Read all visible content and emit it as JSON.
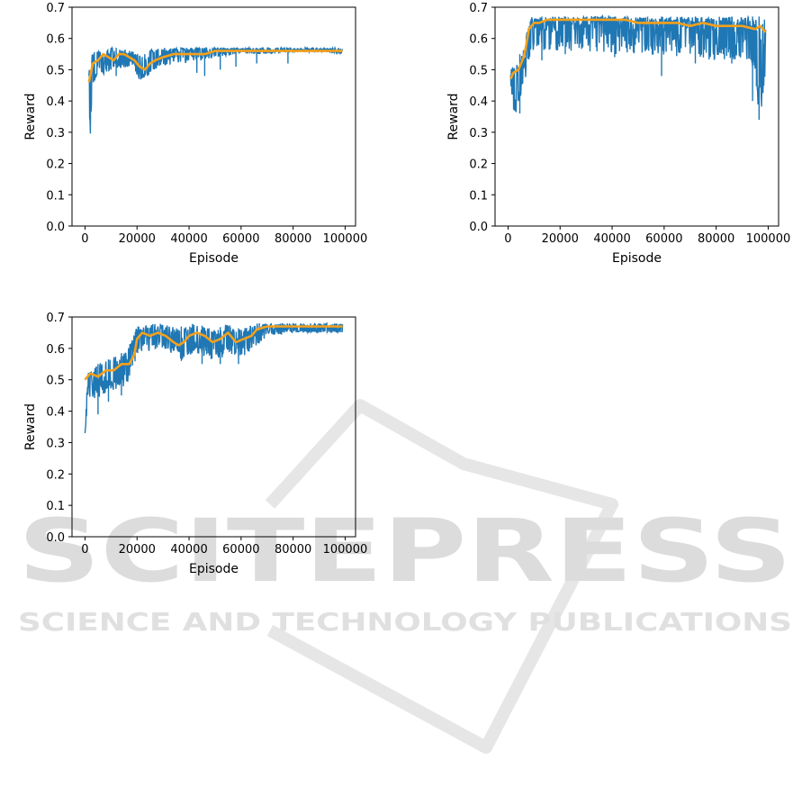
{
  "watermark": {
    "text": "SCITEPRESS",
    "subtext": "SCIENCE AND TECHNOLOGY PUBLICATIONS",
    "color": "#d9d9d9"
  },
  "colors": {
    "raw": "#1f77b4",
    "smooth": "#f5a01a",
    "axis": "#000000"
  },
  "chart_data": [
    {
      "type": "line",
      "xlabel": "Episode",
      "ylabel": "Reward",
      "xlim": [
        -5000,
        104000
      ],
      "ylim": [
        0.0,
        0.7
      ],
      "xticks": [
        0,
        20000,
        40000,
        60000,
        80000,
        100000
      ],
      "xtick_labels": [
        "0",
        "20000",
        "40000",
        "60000",
        "80000",
        "100000"
      ],
      "yticks": [
        0.0,
        0.1,
        0.2,
        0.3,
        0.4,
        0.5,
        0.6,
        0.7
      ],
      "ytick_labels": [
        "0.0",
        "0.1",
        "0.2",
        "0.3",
        "0.4",
        "0.5",
        "0.6",
        "0.7"
      ],
      "series": [
        {
          "role": "raw",
          "color": "#1f77b4",
          "x": [
            1500,
            2000,
            3000,
            4000,
            5000,
            7000,
            10000,
            14000,
            18000,
            21000,
            24000,
            27000,
            30000,
            35000,
            40000,
            50000,
            60000,
            70000,
            80000,
            90000,
            99000
          ],
          "y": [
            0.46,
            0.32,
            0.53,
            0.48,
            0.54,
            0.5,
            0.55,
            0.52,
            0.53,
            0.48,
            0.5,
            0.53,
            0.54,
            0.55,
            0.55,
            0.56,
            0.56,
            0.56,
            0.56,
            0.56,
            0.56
          ],
          "band_upper": [
            0.5,
            0.55,
            0.56,
            0.56,
            0.56,
            0.56,
            0.57,
            0.57,
            0.56,
            0.55,
            0.56,
            0.57,
            0.57,
            0.57,
            0.57,
            0.57,
            0.57,
            0.57,
            0.57,
            0.57,
            0.57
          ],
          "band_lower": [
            0.42,
            0.32,
            0.45,
            0.47,
            0.48,
            0.49,
            0.5,
            0.51,
            0.51,
            0.47,
            0.48,
            0.5,
            0.51,
            0.52,
            0.52,
            0.54,
            0.55,
            0.55,
            0.56,
            0.56,
            0.55
          ],
          "dips": [
            [
              10000,
              0.5
            ],
            [
              12000,
              0.48
            ],
            [
              43000,
              0.49
            ],
            [
              46000,
              0.48
            ],
            [
              52000,
              0.5
            ],
            [
              58000,
              0.51
            ],
            [
              66000,
              0.52
            ],
            [
              78000,
              0.52
            ]
          ]
        },
        {
          "role": "smoothed",
          "color": "#f5a01a",
          "x": [
            1500,
            3000,
            5000,
            7000,
            9000,
            11000,
            13000,
            15000,
            17000,
            19000,
            21000,
            23000,
            25000,
            27000,
            30000,
            34000,
            38000,
            42000,
            46000,
            50000,
            55000,
            60000,
            70000,
            80000,
            90000,
            99000
          ],
          "y": [
            0.46,
            0.52,
            0.53,
            0.55,
            0.54,
            0.53,
            0.55,
            0.55,
            0.54,
            0.53,
            0.51,
            0.5,
            0.52,
            0.53,
            0.54,
            0.55,
            0.55,
            0.55,
            0.55,
            0.56,
            0.56,
            0.56,
            0.56,
            0.56,
            0.56,
            0.56
          ]
        }
      ]
    },
    {
      "type": "line",
      "xlabel": "Episode",
      "ylabel": "Reward",
      "xlim": [
        -5000,
        104000
      ],
      "ylim": [
        0.0,
        0.7
      ],
      "xticks": [
        0,
        20000,
        40000,
        60000,
        80000,
        100000
      ],
      "xtick_labels": [
        "0",
        "20000",
        "40000",
        "60000",
        "80000",
        "100000"
      ],
      "yticks": [
        0.0,
        0.1,
        0.2,
        0.3,
        0.4,
        0.5,
        0.6,
        0.7
      ],
      "ytick_labels": [
        "0.0",
        "0.1",
        "0.2",
        "0.3",
        "0.4",
        "0.5",
        "0.6",
        "0.7"
      ],
      "series": [
        {
          "role": "raw",
          "color": "#1f77b4",
          "x": [
            1000,
            2000,
            3000,
            4000,
            5000,
            6000,
            7000,
            8000,
            9000,
            10000,
            15000,
            20000,
            30000,
            40000,
            50000,
            60000,
            70000,
            80000,
            90000,
            95000,
            97000,
            99000
          ],
          "y": [
            0.47,
            0.4,
            0.38,
            0.48,
            0.46,
            0.52,
            0.55,
            0.6,
            0.62,
            0.64,
            0.63,
            0.64,
            0.64,
            0.64,
            0.63,
            0.63,
            0.63,
            0.62,
            0.61,
            0.55,
            0.35,
            0.52
          ],
          "band_upper": [
            0.49,
            0.54,
            0.53,
            0.55,
            0.55,
            0.58,
            0.62,
            0.66,
            0.67,
            0.67,
            0.67,
            0.67,
            0.67,
            0.67,
            0.67,
            0.67,
            0.67,
            0.67,
            0.67,
            0.67,
            0.67,
            0.67
          ],
          "band_lower": [
            0.46,
            0.38,
            0.36,
            0.4,
            0.42,
            0.45,
            0.48,
            0.52,
            0.55,
            0.56,
            0.56,
            0.56,
            0.56,
            0.55,
            0.55,
            0.54,
            0.54,
            0.53,
            0.53,
            0.5,
            0.34,
            0.5
          ],
          "dips": [
            [
              4500,
              0.36
            ],
            [
              13000,
              0.53
            ],
            [
              22000,
              0.55
            ],
            [
              41000,
              0.54
            ],
            [
              59000,
              0.48
            ],
            [
              72000,
              0.52
            ],
            [
              86000,
              0.52
            ],
            [
              94000,
              0.4
            ],
            [
              96500,
              0.34
            ]
          ]
        },
        {
          "role": "smoothed",
          "color": "#f5a01a",
          "x": [
            1000,
            2000,
            4000,
            6000,
            7000,
            8000,
            9000,
            10000,
            12000,
            15000,
            20000,
            25000,
            30000,
            35000,
            40000,
            45000,
            50000,
            55000,
            60000,
            65000,
            70000,
            75000,
            80000,
            85000,
            90000,
            95000,
            97000,
            99000
          ],
          "y": [
            0.47,
            0.49,
            0.5,
            0.54,
            0.58,
            0.63,
            0.64,
            0.65,
            0.65,
            0.66,
            0.66,
            0.66,
            0.66,
            0.66,
            0.66,
            0.66,
            0.65,
            0.65,
            0.65,
            0.65,
            0.64,
            0.65,
            0.64,
            0.64,
            0.64,
            0.63,
            0.64,
            0.62
          ]
        }
      ]
    },
    {
      "type": "line",
      "xlabel": "Episode",
      "ylabel": "Reward",
      "xlim": [
        -5000,
        104000
      ],
      "ylim": [
        0.0,
        0.7
      ],
      "xticks": [
        0,
        20000,
        40000,
        60000,
        80000,
        100000
      ],
      "xtick_labels": [
        "0",
        "20000",
        "40000",
        "60000",
        "80000",
        "100000"
      ],
      "yticks": [
        0.0,
        0.1,
        0.2,
        0.3,
        0.4,
        0.5,
        0.6,
        0.7
      ],
      "ytick_labels": [
        "0.0",
        "0.1",
        "0.2",
        "0.3",
        "0.4",
        "0.5",
        "0.6",
        "0.7"
      ],
      "series": [
        {
          "role": "raw",
          "color": "#1f77b4",
          "x": [
            0,
            1000,
            3000,
            5000,
            8000,
            12000,
            16000,
            18000,
            20000,
            25000,
            30000,
            34000,
            38000,
            42000,
            46000,
            50000,
            55000,
            60000,
            65000,
            70000,
            80000,
            90000,
            99000
          ],
          "y": [
            0.33,
            0.5,
            0.48,
            0.49,
            0.5,
            0.52,
            0.53,
            0.58,
            0.63,
            0.64,
            0.63,
            0.62,
            0.61,
            0.63,
            0.62,
            0.6,
            0.63,
            0.61,
            0.64,
            0.66,
            0.66,
            0.66,
            0.66
          ],
          "band_upper": [
            0.33,
            0.52,
            0.54,
            0.55,
            0.56,
            0.58,
            0.59,
            0.63,
            0.67,
            0.68,
            0.68,
            0.67,
            0.67,
            0.68,
            0.67,
            0.66,
            0.68,
            0.66,
            0.68,
            0.68,
            0.68,
            0.68,
            0.68
          ],
          "band_lower": [
            0.33,
            0.42,
            0.44,
            0.43,
            0.46,
            0.47,
            0.48,
            0.52,
            0.58,
            0.59,
            0.6,
            0.58,
            0.56,
            0.59,
            0.57,
            0.56,
            0.58,
            0.56,
            0.6,
            0.64,
            0.65,
            0.65,
            0.65
          ],
          "dips": [
            [
              5000,
              0.39
            ],
            [
              9000,
              0.43
            ],
            [
              14000,
              0.45
            ],
            [
              37000,
              0.56
            ],
            [
              45000,
              0.55
            ],
            [
              52000,
              0.55
            ],
            [
              59000,
              0.55
            ],
            [
              67000,
              0.62
            ]
          ]
        },
        {
          "role": "smoothed",
          "color": "#f5a01a",
          "x": [
            0,
            2000,
            5000,
            8000,
            11000,
            14000,
            17000,
            19000,
            20000,
            22000,
            25000,
            28000,
            31000,
            34000,
            36000,
            38000,
            40000,
            43000,
            46000,
            49000,
            52000,
            55000,
            58000,
            61000,
            64000,
            66000,
            70000,
            80000,
            90000,
            99000
          ],
          "y": [
            0.5,
            0.52,
            0.51,
            0.53,
            0.53,
            0.55,
            0.55,
            0.58,
            0.63,
            0.65,
            0.64,
            0.65,
            0.64,
            0.62,
            0.61,
            0.62,
            0.64,
            0.65,
            0.64,
            0.62,
            0.63,
            0.65,
            0.62,
            0.63,
            0.64,
            0.66,
            0.67,
            0.67,
            0.67,
            0.67
          ]
        }
      ]
    }
  ]
}
